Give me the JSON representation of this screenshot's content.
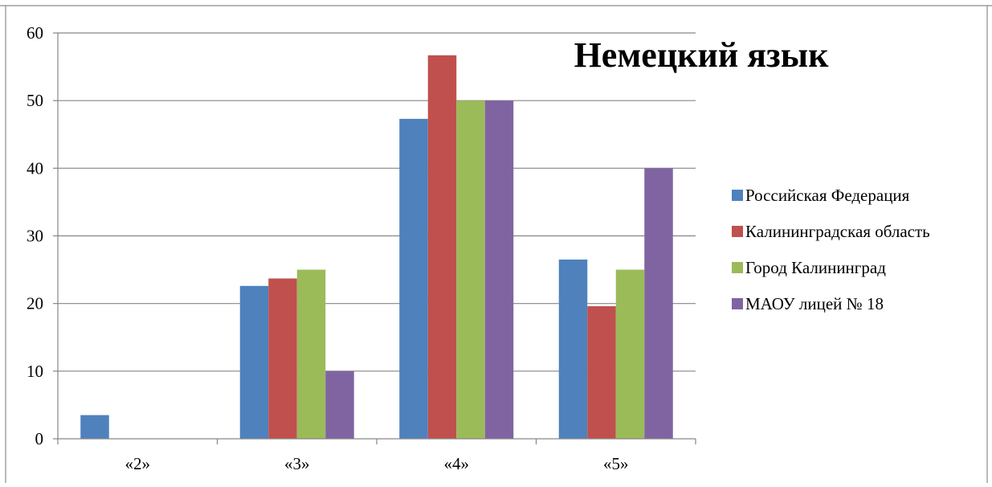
{
  "chart_data": {
    "type": "bar",
    "title": "Немецкий язык",
    "categories": [
      "«2»",
      "«3»",
      "«4»",
      "«5»"
    ],
    "series": [
      {
        "name": "Российская Федерация",
        "color": "#4F81BD",
        "values": [
          3.5,
          22.6,
          47.3,
          26.5
        ]
      },
      {
        "name": "Калининградская область",
        "color": "#C0504D",
        "values": [
          0,
          23.7,
          56.7,
          19.6
        ]
      },
      {
        "name": "Город Калининград",
        "color": "#9BBB59",
        "values": [
          0,
          25,
          50,
          25
        ]
      },
      {
        "name": "МАОУ лицей № 18",
        "color": "#8064A2",
        "values": [
          0,
          10,
          50,
          40
        ]
      }
    ],
    "ylim": [
      0,
      60
    ],
    "yticks": [
      0,
      10,
      20,
      30,
      40,
      50,
      60
    ],
    "grid": true,
    "legend_position": "right",
    "xlabel": "",
    "ylabel": ""
  }
}
